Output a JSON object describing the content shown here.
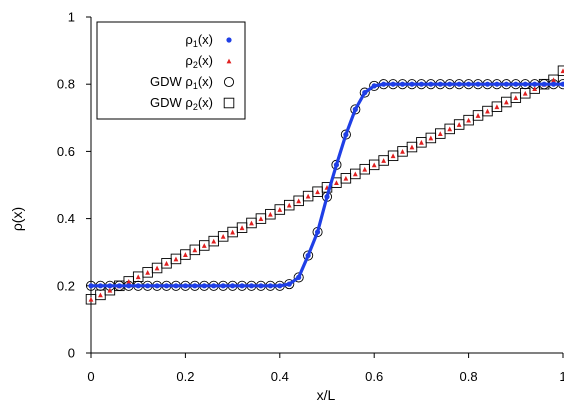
{
  "chart_data": {
    "type": "scatter",
    "title": "",
    "xlabel": "x/L",
    "ylabel": "ρ(x)",
    "xlim": [
      0,
      1
    ],
    "ylim": [
      0,
      1
    ],
    "xticks": [
      "0",
      "0.2",
      "0.4",
      "0.6",
      "0.8",
      "1"
    ],
    "yticks": [
      "0",
      "0.2",
      "0.4",
      "0.6",
      "0.8",
      "1"
    ],
    "grid": false,
    "legend_position": "top-left",
    "series": [
      {
        "name": "ρ1(x)",
        "legend_base": "ρ",
        "legend_sub": "1",
        "legend_tail": "(x)",
        "marker": "dot",
        "color": "#1f3fe6",
        "x": [
          0,
          0.02,
          0.04,
          0.06,
          0.08,
          0.1,
          0.12,
          0.14,
          0.16,
          0.18,
          0.2,
          0.22,
          0.24,
          0.26,
          0.28,
          0.3,
          0.32,
          0.34,
          0.36,
          0.38,
          0.4,
          0.42,
          0.44,
          0.46,
          0.48,
          0.5,
          0.52,
          0.54,
          0.56,
          0.58,
          0.6,
          0.62,
          0.64,
          0.66,
          0.68,
          0.7,
          0.72,
          0.74,
          0.76,
          0.78,
          0.8,
          0.82,
          0.84,
          0.86,
          0.88,
          0.9,
          0.92,
          0.94,
          0.96,
          0.98,
          1
        ],
        "y": [
          0.2,
          0.2,
          0.2,
          0.2,
          0.2,
          0.2,
          0.2,
          0.2,
          0.2,
          0.2,
          0.2,
          0.2,
          0.2,
          0.2,
          0.2,
          0.2,
          0.2,
          0.2,
          0.2,
          0.2,
          0.2,
          0.205,
          0.225,
          0.29,
          0.36,
          0.465,
          0.56,
          0.65,
          0.725,
          0.775,
          0.795,
          0.8,
          0.8,
          0.8,
          0.8,
          0.8,
          0.8,
          0.8,
          0.8,
          0.8,
          0.8,
          0.8,
          0.8,
          0.8,
          0.8,
          0.8,
          0.8,
          0.8,
          0.8,
          0.8,
          0.8
        ]
      },
      {
        "name": "ρ2(x)",
        "legend_base": "ρ",
        "legend_sub": "2",
        "legend_tail": "(x)",
        "marker": "triangle",
        "color": "#e02020",
        "x": [
          0,
          0.02,
          0.04,
          0.06,
          0.08,
          0.1,
          0.12,
          0.14,
          0.16,
          0.18,
          0.2,
          0.22,
          0.24,
          0.26,
          0.28,
          0.3,
          0.32,
          0.34,
          0.36,
          0.38,
          0.4,
          0.42,
          0.44,
          0.46,
          0.48,
          0.5,
          0.52,
          0.54,
          0.56,
          0.58,
          0.6,
          0.62,
          0.64,
          0.66,
          0.68,
          0.7,
          0.72,
          0.74,
          0.76,
          0.78,
          0.8,
          0.82,
          0.84,
          0.86,
          0.88,
          0.9,
          0.92,
          0.94,
          0.96,
          0.98,
          1
        ],
        "y": [
          0.16,
          0.173,
          0.187,
          0.2,
          0.213,
          0.227,
          0.24,
          0.253,
          0.267,
          0.28,
          0.293,
          0.307,
          0.32,
          0.333,
          0.347,
          0.36,
          0.373,
          0.387,
          0.4,
          0.413,
          0.427,
          0.44,
          0.453,
          0.467,
          0.48,
          0.493,
          0.507,
          0.52,
          0.533,
          0.547,
          0.56,
          0.573,
          0.587,
          0.6,
          0.613,
          0.627,
          0.64,
          0.653,
          0.667,
          0.68,
          0.693,
          0.707,
          0.72,
          0.733,
          0.747,
          0.76,
          0.773,
          0.787,
          0.8,
          0.813,
          0.84
        ]
      },
      {
        "name": "GDW ρ1(x)",
        "legend_base": "GDW ρ",
        "legend_sub": "1",
        "legend_tail": "(x)",
        "marker": "open-circle",
        "color": "#000000",
        "x": [
          0,
          0.02,
          0.04,
          0.06,
          0.08,
          0.1,
          0.12,
          0.14,
          0.16,
          0.18,
          0.2,
          0.22,
          0.24,
          0.26,
          0.28,
          0.3,
          0.32,
          0.34,
          0.36,
          0.38,
          0.4,
          0.42,
          0.44,
          0.46,
          0.48,
          0.5,
          0.52,
          0.54,
          0.56,
          0.58,
          0.6,
          0.62,
          0.64,
          0.66,
          0.68,
          0.7,
          0.72,
          0.74,
          0.76,
          0.78,
          0.8,
          0.82,
          0.84,
          0.86,
          0.88,
          0.9,
          0.92,
          0.94,
          0.96,
          0.98,
          1
        ],
        "y": [
          0.2,
          0.2,
          0.2,
          0.2,
          0.2,
          0.2,
          0.2,
          0.2,
          0.2,
          0.2,
          0.2,
          0.2,
          0.2,
          0.2,
          0.2,
          0.2,
          0.2,
          0.2,
          0.2,
          0.2,
          0.2,
          0.205,
          0.225,
          0.29,
          0.36,
          0.465,
          0.56,
          0.65,
          0.725,
          0.775,
          0.795,
          0.8,
          0.8,
          0.8,
          0.8,
          0.8,
          0.8,
          0.8,
          0.8,
          0.8,
          0.8,
          0.8,
          0.8,
          0.8,
          0.8,
          0.8,
          0.8,
          0.8,
          0.8,
          0.8,
          0.8
        ]
      },
      {
        "name": "GDW ρ2(x)",
        "legend_base": "GDW ρ",
        "legend_sub": "2",
        "legend_tail": "(x)",
        "marker": "open-square",
        "color": "#000000",
        "x": [
          0,
          0.02,
          0.04,
          0.06,
          0.08,
          0.1,
          0.12,
          0.14,
          0.16,
          0.18,
          0.2,
          0.22,
          0.24,
          0.26,
          0.28,
          0.3,
          0.32,
          0.34,
          0.36,
          0.38,
          0.4,
          0.42,
          0.44,
          0.46,
          0.48,
          0.5,
          0.52,
          0.54,
          0.56,
          0.58,
          0.6,
          0.62,
          0.64,
          0.66,
          0.68,
          0.7,
          0.72,
          0.74,
          0.76,
          0.78,
          0.8,
          0.82,
          0.84,
          0.86,
          0.88,
          0.9,
          0.92,
          0.94,
          0.96,
          0.98,
          1
        ],
        "y": [
          0.16,
          0.173,
          0.187,
          0.2,
          0.213,
          0.227,
          0.24,
          0.253,
          0.267,
          0.28,
          0.293,
          0.307,
          0.32,
          0.333,
          0.347,
          0.36,
          0.373,
          0.387,
          0.4,
          0.413,
          0.427,
          0.44,
          0.453,
          0.467,
          0.48,
          0.493,
          0.507,
          0.52,
          0.533,
          0.547,
          0.56,
          0.573,
          0.587,
          0.6,
          0.613,
          0.627,
          0.64,
          0.653,
          0.667,
          0.68,
          0.693,
          0.707,
          0.72,
          0.733,
          0.747,
          0.76,
          0.773,
          0.787,
          0.8,
          0.813,
          0.84
        ]
      }
    ]
  }
}
